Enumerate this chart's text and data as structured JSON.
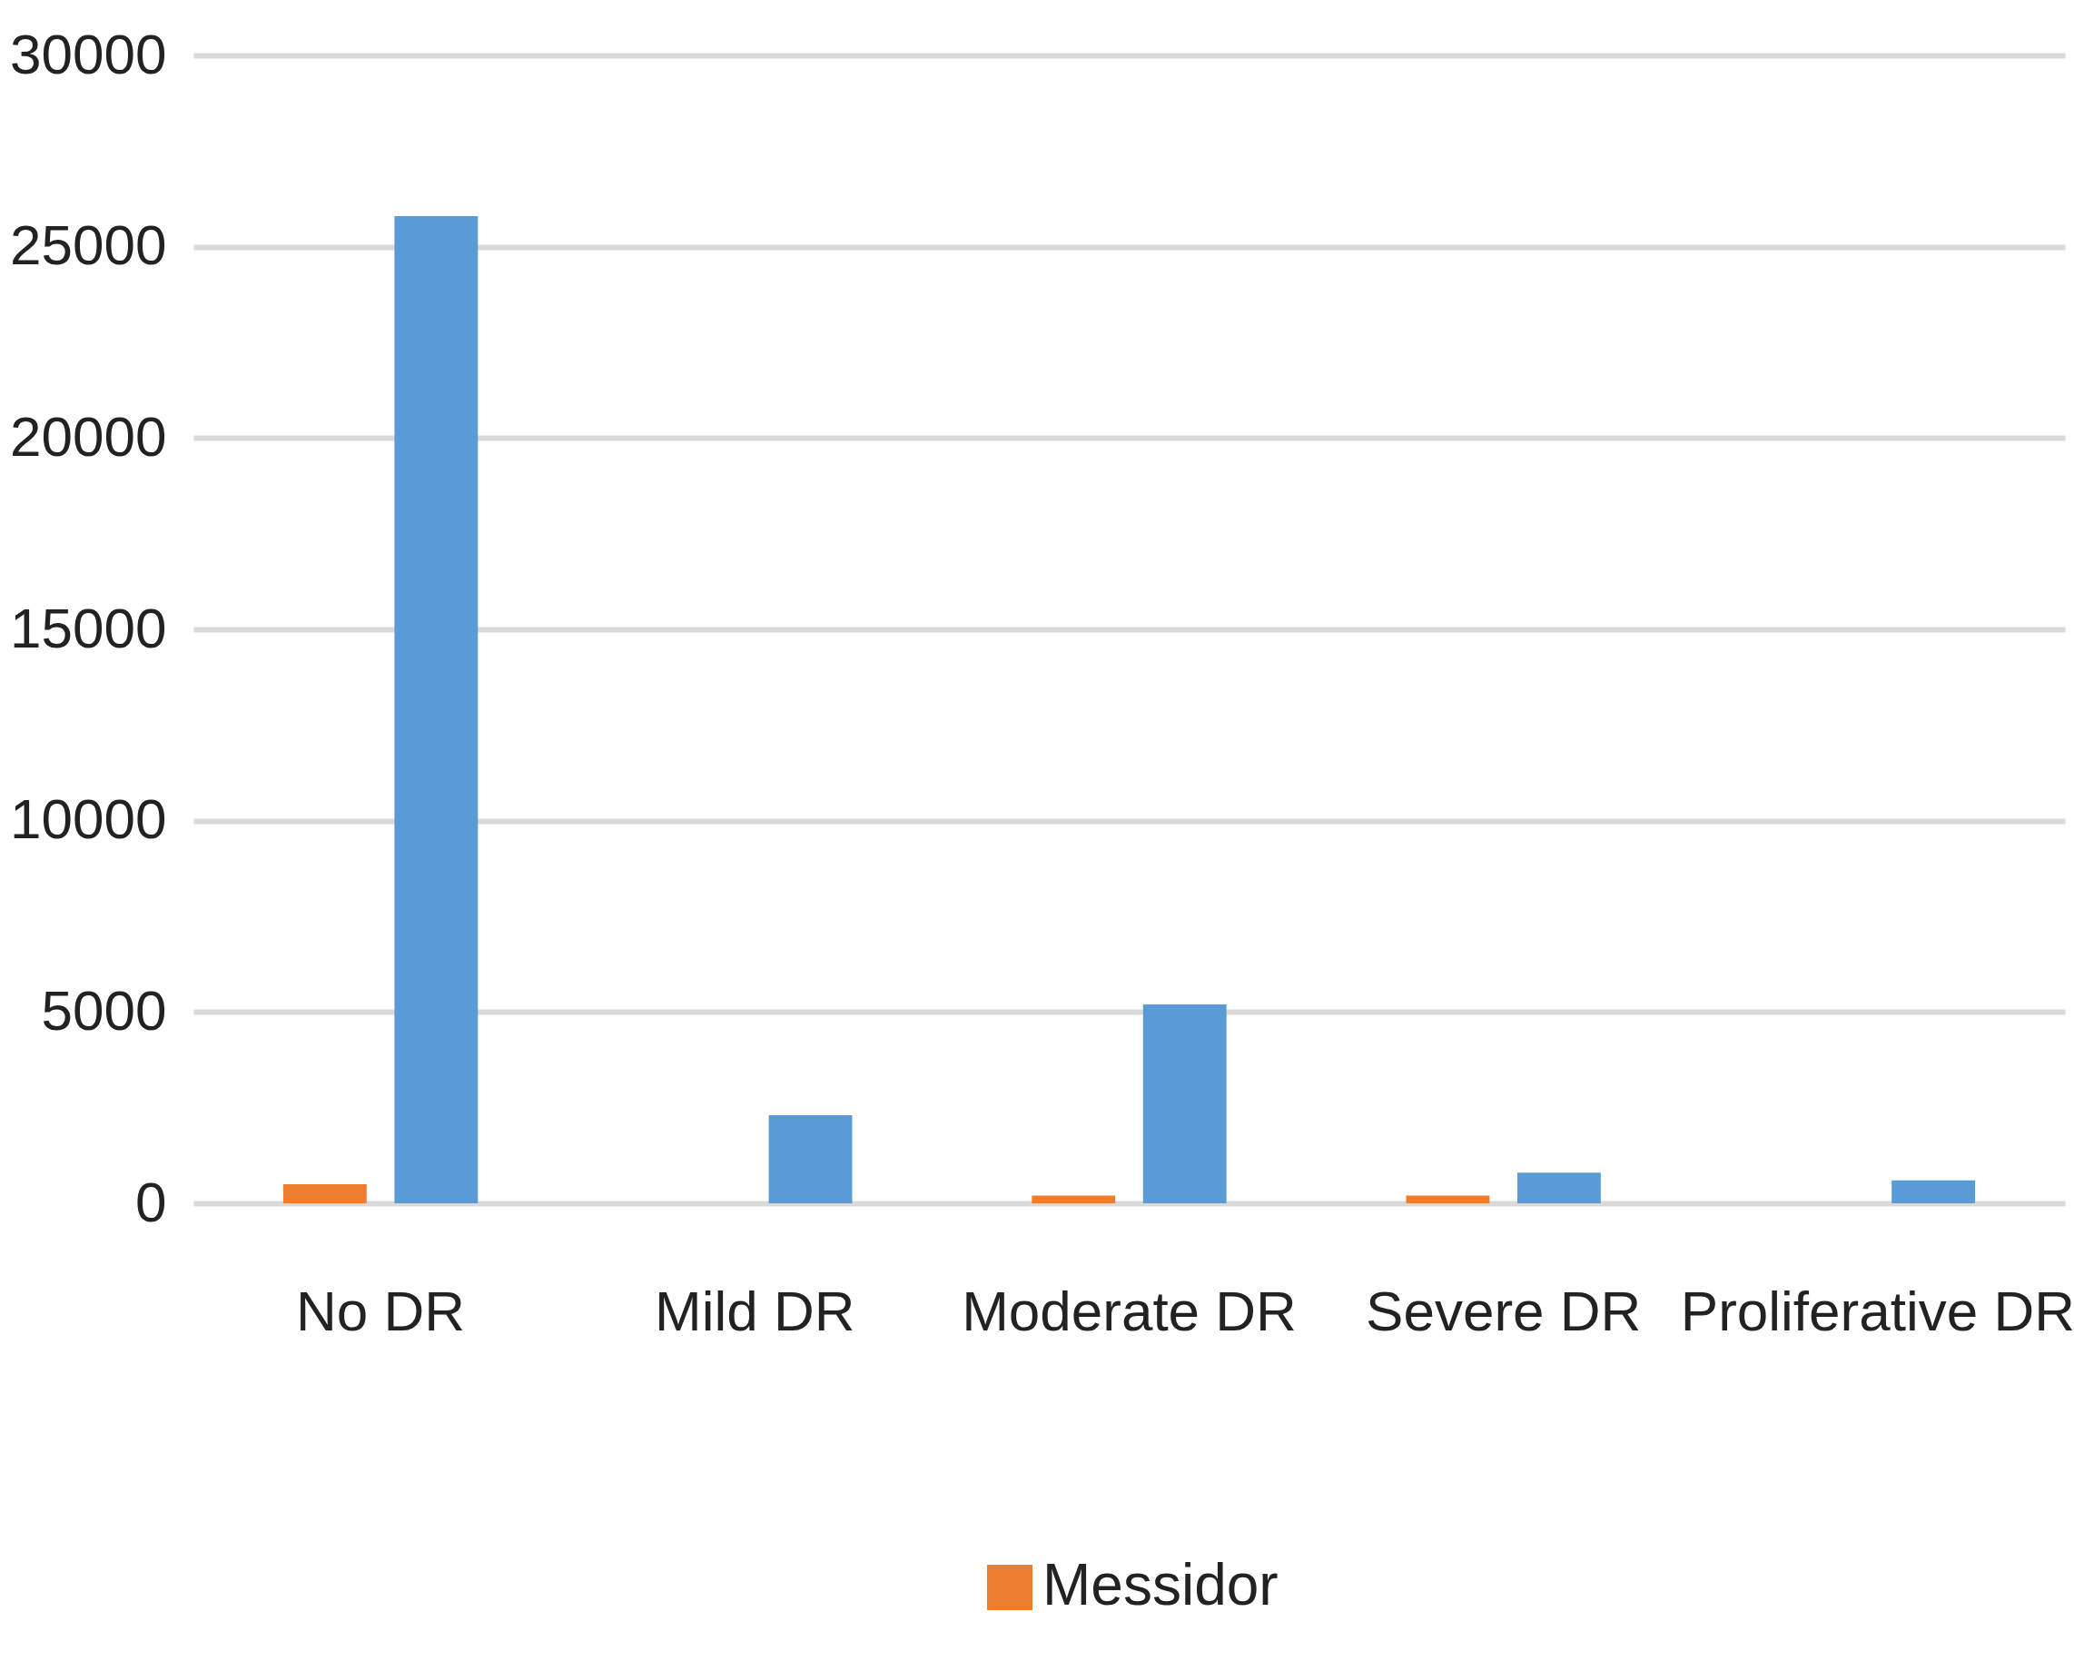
{
  "chart_data": {
    "type": "bar",
    "categories": [
      "No DR",
      "Mild DR",
      "Moderate DR",
      "Severe DR",
      "Proliferative DR"
    ],
    "series": [
      {
        "name": "Messidor",
        "color": "#ed7d31",
        "values": [
          500,
          null,
          200,
          200,
          null
        ]
      },
      {
        "color": "#5b9bd5",
        "values": [
          25800,
          2300,
          5200,
          800,
          600
        ]
      }
    ],
    "ylim": [
      0,
      30000
    ],
    "yticks": [
      0,
      5000,
      10000,
      15000,
      20000,
      25000,
      30000
    ],
    "grid": "y",
    "legend": "bottom"
  }
}
